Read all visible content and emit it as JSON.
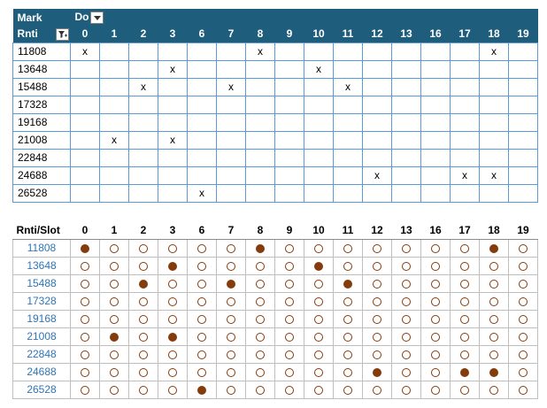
{
  "pivot": {
    "header_row1": {
      "label": "Mark",
      "field": "Do"
    },
    "header_row2": {
      "label": "Rnti"
    },
    "columns": [
      "0",
      "1",
      "2",
      "3",
      "6",
      "7",
      "8",
      "9",
      "10",
      "11",
      "12",
      "13",
      "16",
      "17",
      "18",
      "19"
    ],
    "rows": [
      {
        "rnti": "11808",
        "marks": [
          "x",
          "",
          "",
          "",
          "",
          "",
          "x",
          "",
          "",
          "",
          "",
          "",
          "",
          "",
          "x",
          ""
        ]
      },
      {
        "rnti": "13648",
        "marks": [
          "",
          "",
          "",
          "x",
          "",
          "",
          "",
          "",
          "x",
          "",
          "",
          "",
          "",
          "",
          "",
          ""
        ]
      },
      {
        "rnti": "15488",
        "marks": [
          "",
          "",
          "x",
          "",
          "",
          "x",
          "",
          "",
          "",
          "x",
          "",
          "",
          "",
          "",
          "",
          ""
        ]
      },
      {
        "rnti": "17328",
        "marks": [
          "",
          "",
          "",
          "",
          "",
          "",
          "",
          "",
          "",
          "",
          "",
          "",
          "",
          "",
          "",
          ""
        ]
      },
      {
        "rnti": "19168",
        "marks": [
          "",
          "",
          "",
          "",
          "",
          "",
          "",
          "",
          "",
          "",
          "",
          "",
          "",
          "",
          "",
          ""
        ]
      },
      {
        "rnti": "21008",
        "marks": [
          "",
          "x",
          "",
          "x",
          "",
          "",
          "",
          "",
          "",
          "",
          "",
          "",
          "",
          "",
          "",
          ""
        ]
      },
      {
        "rnti": "22848",
        "marks": [
          "",
          "",
          "",
          "",
          "",
          "",
          "",
          "",
          "",
          "",
          "",
          "",
          "",
          "",
          "",
          ""
        ]
      },
      {
        "rnti": "24688",
        "marks": [
          "",
          "",
          "",
          "",
          "",
          "",
          "",
          "",
          "",
          "",
          "x",
          "",
          "",
          "x",
          "x",
          ""
        ]
      },
      {
        "rnti": "26528",
        "marks": [
          "",
          "",
          "",
          "",
          "x",
          "",
          "",
          "",
          "",
          "",
          "",
          "",
          "",
          "",
          "",
          ""
        ]
      }
    ]
  },
  "grid": {
    "header_label": "Rnti/Slot",
    "columns": [
      "0",
      "1",
      "2",
      "3",
      "6",
      "7",
      "8",
      "9",
      "10",
      "11",
      "12",
      "13",
      "16",
      "17",
      "18",
      "19"
    ],
    "rows": [
      {
        "rnti": "11808",
        "active": [
          1,
          0,
          0,
          0,
          0,
          0,
          1,
          0,
          0,
          0,
          0,
          0,
          0,
          0,
          1,
          0
        ]
      },
      {
        "rnti": "13648",
        "active": [
          0,
          0,
          0,
          1,
          0,
          0,
          0,
          0,
          1,
          0,
          0,
          0,
          0,
          0,
          0,
          0
        ]
      },
      {
        "rnti": "15488",
        "active": [
          0,
          0,
          1,
          0,
          0,
          1,
          0,
          0,
          0,
          1,
          0,
          0,
          0,
          0,
          0,
          0
        ]
      },
      {
        "rnti": "17328",
        "active": [
          0,
          0,
          0,
          0,
          0,
          0,
          0,
          0,
          0,
          0,
          0,
          0,
          0,
          0,
          0,
          0
        ]
      },
      {
        "rnti": "19168",
        "active": [
          0,
          0,
          0,
          0,
          0,
          0,
          0,
          0,
          0,
          0,
          0,
          0,
          0,
          0,
          0,
          0
        ]
      },
      {
        "rnti": "21008",
        "active": [
          0,
          1,
          0,
          1,
          0,
          0,
          0,
          0,
          0,
          0,
          0,
          0,
          0,
          0,
          0,
          0
        ]
      },
      {
        "rnti": "22848",
        "active": [
          0,
          0,
          0,
          0,
          0,
          0,
          0,
          0,
          0,
          0,
          0,
          0,
          0,
          0,
          0,
          0
        ]
      },
      {
        "rnti": "24688",
        "active": [
          0,
          0,
          0,
          0,
          0,
          0,
          0,
          0,
          0,
          0,
          1,
          0,
          0,
          1,
          1,
          0
        ]
      },
      {
        "rnti": "26528",
        "active": [
          0,
          0,
          0,
          0,
          1,
          0,
          0,
          0,
          0,
          0,
          0,
          0,
          0,
          0,
          0,
          0
        ]
      }
    ]
  },
  "colors": {
    "header_bg": "#1f5d7c",
    "pivot_border": "#5b9bd5",
    "dot": "#843c0c",
    "rnti_text": "#2e75b6"
  },
  "icons": {
    "field_dropdown": "chevron-down-icon",
    "row_filter": "filter-icon"
  }
}
